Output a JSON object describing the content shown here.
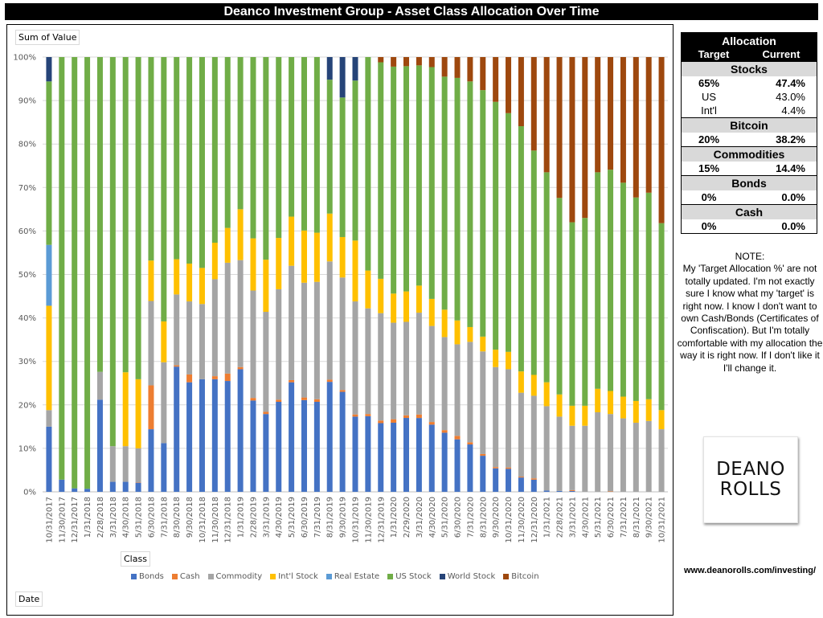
{
  "title": "Deanco Investment Group - Asset Class Allocation Over Time",
  "pivot_fields": {
    "values_field": "Sum of Value",
    "legend_field": "Class",
    "axis_field": "Date"
  },
  "allocation_table": {
    "title": "Allocation",
    "col_target": "Target",
    "col_current": "Current",
    "sections": [
      {
        "name": "Stocks",
        "rows": [
          {
            "label": "65%",
            "value": "47.4%",
            "bold": true
          },
          {
            "label": "US",
            "value": "43.0%",
            "bold": false
          },
          {
            "label": "Int'l",
            "value": "4.4%",
            "bold": false
          }
        ]
      },
      {
        "name": "Bitcoin",
        "rows": [
          {
            "label": "20%",
            "value": "38.2%",
            "bold": true
          }
        ]
      },
      {
        "name": "Commodities",
        "rows": [
          {
            "label": "15%",
            "value": "14.4%",
            "bold": true
          }
        ]
      },
      {
        "name": "Bonds",
        "rows": [
          {
            "label": "0%",
            "value": "0.0%",
            "bold": true
          }
        ]
      },
      {
        "name": "Cash",
        "rows": [
          {
            "label": "0%",
            "value": "0.0%",
            "bold": true
          }
        ]
      }
    ]
  },
  "note": {
    "heading": "NOTE:",
    "text": "My 'Target Allocation %' are not totally updated. I'm not exactly sure I know what my 'target' is right now.  I know I don't want to own Cash/Bonds (Certificates of Confiscation).  But I'm totally comfortable with my allocation the way it is right now.  If I don't like it I'll change it."
  },
  "logo": {
    "line1": "DEANO",
    "line2": "ROLLS"
  },
  "website": "www.deanorolls.com/investing/",
  "chart_data": {
    "type": "bar",
    "stacked": "percent",
    "title": "Deanco Investment Group - Asset Class Allocation Over Time",
    "xlabel": "Date",
    "ylabel": "Sum of Value",
    "ylim": [
      0,
      100
    ],
    "yticks": [
      "0%",
      "10%",
      "20%",
      "30%",
      "40%",
      "50%",
      "60%",
      "70%",
      "80%",
      "90%",
      "100%"
    ],
    "grid": true,
    "legend_position": "bottom",
    "legend_title": "Class",
    "categories": [
      "10/31/2017",
      "11/30/2017",
      "12/31/2017",
      "1/31/2018",
      "2/28/2018",
      "3/31/2018",
      "4/30/2018",
      "5/31/2018",
      "6/30/2018",
      "7/31/2018",
      "8/30/2018",
      "9/30/2018",
      "10/31/2018",
      "11/30/2018",
      "12/31/2018",
      "1/31/2019",
      "2/28/2019",
      "3/31/2019",
      "4/30/2019",
      "5/31/2019",
      "6/30/2019",
      "7/31/2019",
      "8/31/2019",
      "9/30/2019",
      "10/31/2019",
      "11/30/2019",
      "12/31/2019",
      "1/31/2020",
      "2/29/2020",
      "3/31/2020",
      "4/30/2020",
      "5/31/2020",
      "6/30/2020",
      "7/31/2020",
      "8/31/2020",
      "9/30/2020",
      "10/31/2020",
      "11/30/2020",
      "12/31/2020",
      "1/31/2021",
      "2/28/2021",
      "3/31/2021",
      "4/30/2021",
      "5/31/2021",
      "6/30/2021",
      "7/31/2021",
      "8/31/2021",
      "9/30/2021",
      "10/31/2021"
    ],
    "series": [
      {
        "name": "Bonds",
        "color": "#4472c4",
        "values": [
          15,
          2.8,
          0.8,
          0.7,
          21.2,
          2.3,
          2.3,
          2.1,
          14.4,
          11.2,
          28.8,
          25.2,
          25.9,
          25.9,
          25.5,
          28.2,
          21,
          17.9,
          20.7,
          25.2,
          21.1,
          20.7,
          25.3,
          23,
          17.3,
          17.4,
          15.8,
          15.9,
          17,
          16.9,
          15.4,
          13.6,
          12.1,
          10.9,
          8.3,
          5.4,
          5.3,
          3.3,
          2.8,
          0.3,
          0.2,
          0.2,
          0,
          0,
          0,
          0,
          0,
          0,
          0
        ]
      },
      {
        "name": "Cash",
        "color": "#ed7d31",
        "values": [
          0,
          0,
          0,
          0,
          0,
          0,
          0,
          0.1,
          10.1,
          0,
          0.3,
          1.8,
          0,
          0.7,
          1.7,
          0.5,
          0.6,
          0.5,
          0.5,
          0.5,
          0.6,
          0.6,
          0.5,
          0.4,
          0.5,
          0.5,
          0.6,
          0.8,
          0.6,
          0.8,
          0.6,
          0.6,
          0.8,
          0.5,
          0.4,
          0.3,
          0.3,
          0.2,
          0.3,
          0,
          0,
          0.2,
          0,
          0,
          0.1,
          0,
          0,
          0,
          0
        ]
      },
      {
        "name": "Commodity",
        "color": "#a5a5a5",
        "values": [
          3.8,
          0,
          0,
          0,
          6.4,
          8.2,
          8.2,
          7.8,
          19.4,
          18.6,
          16.3,
          16.8,
          17.3,
          22.3,
          25.5,
          24.6,
          24.7,
          23,
          25.4,
          26.3,
          26.4,
          27,
          27.2,
          25.9,
          26,
          24.3,
          24.7,
          22.2,
          21.5,
          23.3,
          22,
          21.4,
          21.1,
          23.1,
          23.6,
          23,
          22.6,
          19.3,
          19,
          19.4,
          17.1,
          14.8,
          15.2,
          18.3,
          17.8,
          16.9,
          15.9,
          16.3,
          14.4
        ]
      },
      {
        "name": "Int'l Stock",
        "color": "#ffc000",
        "values": [
          24,
          0,
          0,
          0,
          0,
          0,
          17,
          15.9,
          9.3,
          9.4,
          8.1,
          8.7,
          8.3,
          8.4,
          8,
          11.7,
          12,
          12,
          11.8,
          11.3,
          12,
          11.3,
          11,
          9.3,
          14,
          8.7,
          7.9,
          6.7,
          7,
          6.2,
          6.2,
          6.3,
          5.5,
          3.4,
          3.4,
          4,
          4,
          4.9,
          4.8,
          5.5,
          5.1,
          4.6,
          4.6,
          5.4,
          5.3,
          5,
          5,
          5,
          4.4
        ]
      },
      {
        "name": "Real Estate",
        "color": "#5b9bd5",
        "values": [
          14,
          0,
          0,
          0,
          0,
          0,
          0,
          0,
          0,
          0,
          0,
          0,
          0,
          0,
          0,
          0,
          0,
          0,
          0,
          0,
          0,
          0,
          0,
          0,
          0,
          0,
          0,
          0,
          0,
          0,
          0,
          0,
          0,
          0,
          0,
          0,
          0,
          0,
          0,
          0,
          0,
          0,
          0,
          0,
          0,
          0,
          0,
          0,
          0
        ]
      },
      {
        "name": "US Stock",
        "color": "#70ad47",
        "values": [
          37.6,
          97.2,
          99.2,
          99.3,
          72.4,
          89.5,
          72.5,
          74.1,
          46.8,
          60.8,
          46.5,
          47.5,
          48.5,
          42.7,
          39.3,
          35,
          41.7,
          46.6,
          41.6,
          36.7,
          39.9,
          40.4,
          30.8,
          32.1,
          36.8,
          49.1,
          49.8,
          52.2,
          51.8,
          50.4,
          53.1,
          53.6,
          55.9,
          56.5,
          56.7,
          57,
          54.9,
          56.4,
          51.6,
          48.3,
          45.2,
          42.2,
          43.2,
          49.8,
          50.9,
          49.2,
          46.8,
          47.5,
          43
        ]
      },
      {
        "name": "World Stock",
        "color": "#264478",
        "values": [
          5.6,
          0,
          0,
          0,
          0,
          0,
          0,
          0,
          0,
          0,
          0,
          0,
          0,
          0,
          0,
          0,
          0,
          0,
          0,
          0,
          0,
          0,
          5.2,
          9.3,
          5.4,
          0,
          0,
          0,
          0,
          0,
          0,
          0,
          0,
          0,
          0,
          0,
          0,
          0,
          0,
          0,
          0,
          0,
          0,
          0,
          0,
          0,
          0,
          0,
          0
        ]
      },
      {
        "name": "Bitcoin",
        "color": "#9e480e",
        "values": [
          0,
          0,
          0,
          0,
          0,
          0,
          0,
          0,
          0,
          0,
          0,
          0,
          0,
          0,
          0,
          0,
          0,
          0,
          0,
          0,
          0,
          0,
          0,
          0,
          0,
          0,
          1.2,
          2.2,
          2.1,
          1.9,
          2.3,
          4.5,
          4.8,
          5.6,
          7.6,
          10.3,
          12.9,
          15.9,
          21.5,
          26.5,
          32.4,
          38,
          37,
          26.5,
          25.9,
          28.9,
          32.3,
          31.2,
          38.2
        ]
      }
    ]
  }
}
